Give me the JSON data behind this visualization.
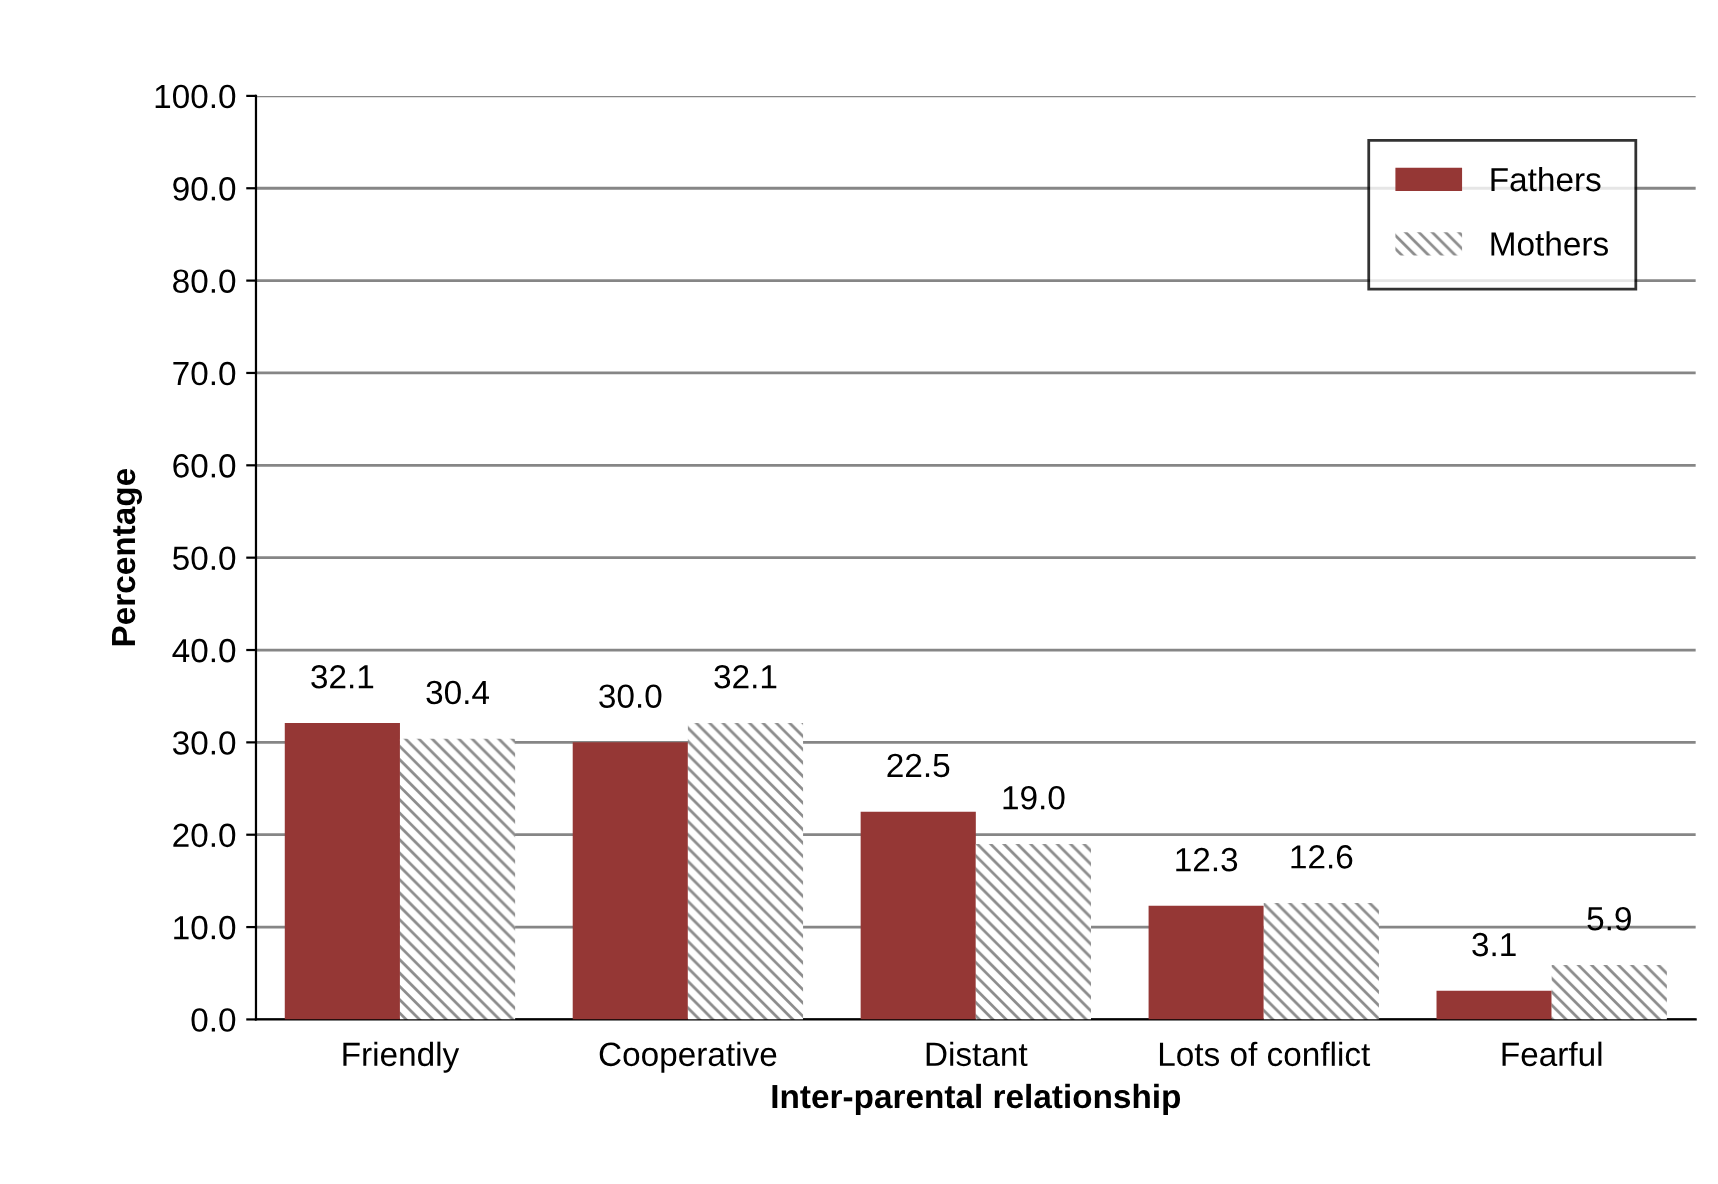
{
  "chart_data": {
    "type": "bar",
    "xlabel": "Inter-parental relationship",
    "ylabel": "Percentage",
    "categories": [
      "Friendly",
      "Cooperative",
      "Distant",
      "Lots of conflict",
      "Fearful"
    ],
    "series": [
      {
        "name": "Fathers",
        "color": "#953735",
        "values": [
          32.1,
          30.0,
          22.5,
          12.3,
          3.1
        ],
        "value_labels": [
          "32.1",
          "30.0",
          "22.5",
          "12.3",
          "3.1"
        ]
      },
      {
        "name": "Mothers",
        "color": "#8c8c8c",
        "values": [
          30.4,
          32.1,
          19.0,
          12.6,
          5.9
        ],
        "value_labels": [
          "30.4",
          "32.1",
          "19.0",
          "12.6",
          "5.9"
        ]
      }
    ],
    "ylim": [
      0,
      100
    ],
    "yticks": [
      {
        "value": 0,
        "label": "0.0"
      },
      {
        "value": 10,
        "label": "10.0"
      },
      {
        "value": 20,
        "label": "20.0"
      },
      {
        "value": 30,
        "label": "30.0"
      },
      {
        "value": 40,
        "label": "40.0"
      },
      {
        "value": 50,
        "label": "50.0"
      },
      {
        "value": 60,
        "label": "60.0"
      },
      {
        "value": 70,
        "label": "70.0"
      },
      {
        "value": 80,
        "label": "80.0"
      },
      {
        "value": 90,
        "label": "90.0"
      },
      {
        "value": 100,
        "label": "100.0"
      }
    ],
    "grid": "y",
    "legend": "top right"
  }
}
